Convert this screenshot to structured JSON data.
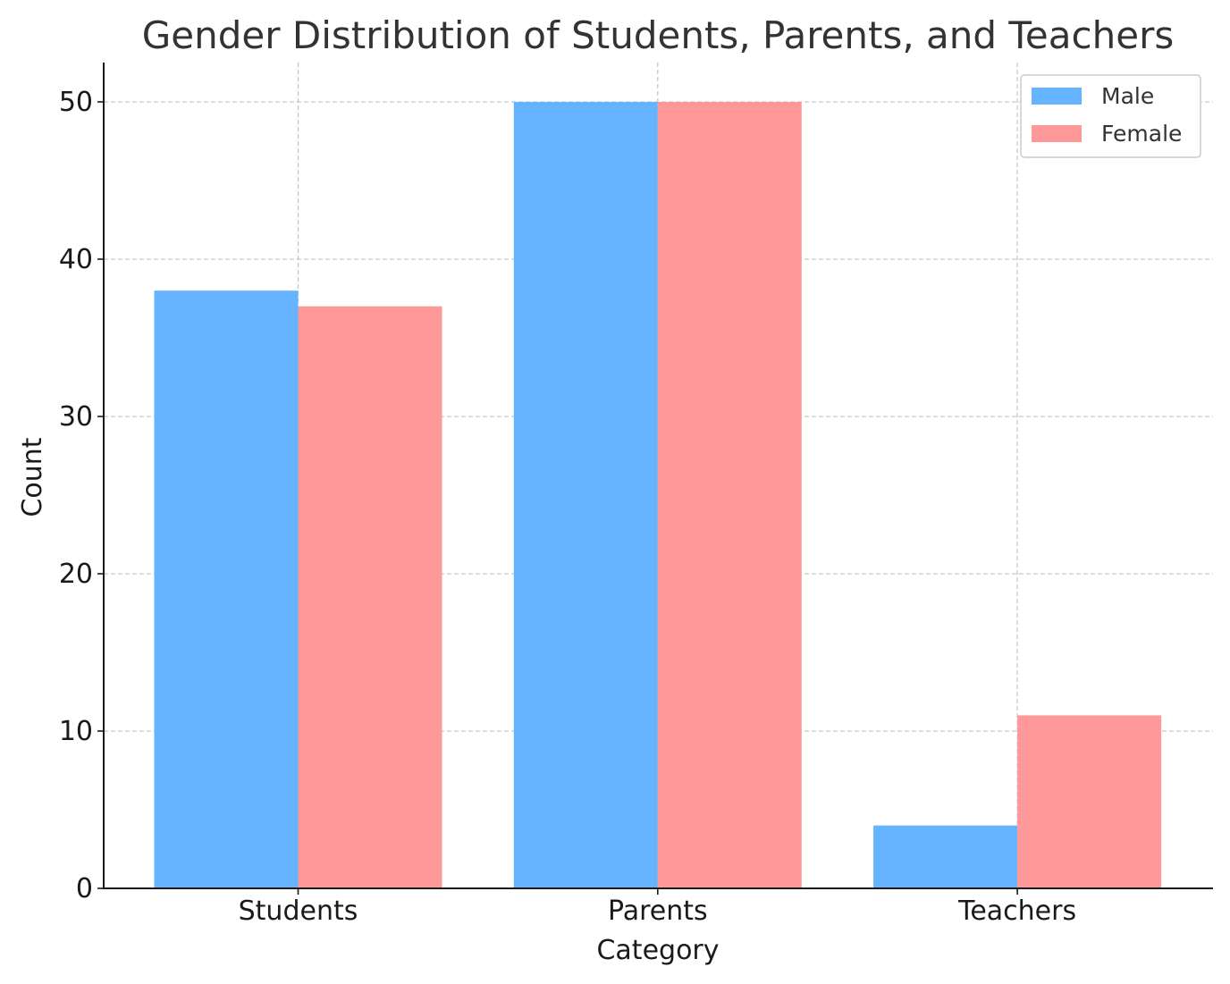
{
  "chart_data": {
    "type": "bar",
    "title": "Gender Distribution of Students, Parents, and Teachers",
    "xlabel": "Category",
    "ylabel": "Count",
    "categories": [
      "Students",
      "Parents",
      "Teachers"
    ],
    "series": [
      {
        "name": "Male",
        "values": [
          38,
          50,
          4
        ],
        "color": "#66b3ff"
      },
      {
        "name": "Female",
        "values": [
          37,
          50,
          11
        ],
        "color": "#ff9999"
      }
    ],
    "ylim": [
      0,
      52.5
    ],
    "yticks": [
      0,
      10,
      20,
      30,
      40,
      50
    ],
    "grid": true,
    "legend_position": "top-right"
  }
}
